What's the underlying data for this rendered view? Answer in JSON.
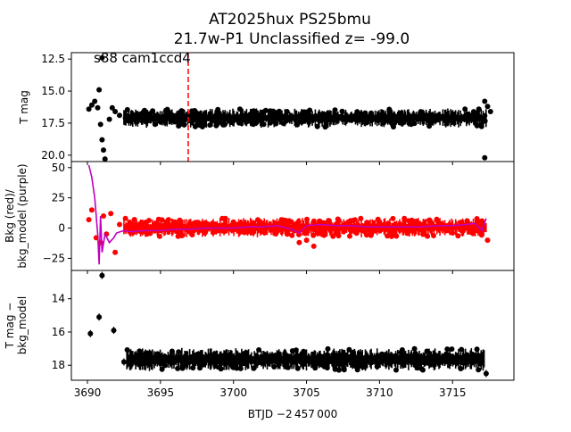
{
  "title_line1": "AT2025hux  PS25bmu",
  "title_line2": "21.7w-P1 Unclassified z= -99.0",
  "annotation": "s88 cam1ccd4",
  "xlabel": "BTJD −2 457 000",
  "colors": {
    "black": "#000000",
    "red": "#ff0000",
    "purple": "#bf00bf",
    "marker_line": "#ff0000"
  },
  "chart_data": [
    {
      "type": "scatter",
      "panel": "top",
      "ylabel": "T mag",
      "xlim": [
        3688.9,
        3719.2
      ],
      "ylim": [
        20.5,
        12.0
      ],
      "y_inverted": true,
      "yticks": [
        12.5,
        15.0,
        17.5,
        20.0
      ],
      "ytick_labels": [
        "12.5",
        "15.0",
        "17.5",
        "20.0"
      ],
      "vertical_marker_x": 3696.9,
      "series": [
        {
          "color": "#000000",
          "points": [
            [
              3690.1,
              16.4
            ],
            [
              3690.3,
              16.1
            ],
            [
              3690.5,
              15.8
            ],
            [
              3690.7,
              16.3
            ],
            [
              3690.8,
              14.9
            ],
            [
              3690.9,
              17.6
            ],
            [
              3691.0,
              18.8
            ],
            [
              3691.1,
              19.6
            ],
            [
              3691.2,
              20.3
            ],
            [
              3691.5,
              17.2
            ],
            [
              3691.7,
              16.3
            ],
            [
              3691.9,
              16.6
            ],
            [
              3692.2,
              16.9
            ],
            [
              3692.6,
              17.1
            ],
            [
              3693.0,
              17.3
            ],
            [
              3694.0,
              17.4
            ],
            [
              3695.0,
              17.4
            ],
            [
              3695.5,
              16.8
            ],
            [
              3696.0,
              17.4
            ],
            [
              3696.5,
              16.9
            ],
            [
              3697.0,
              17.3
            ],
            [
              3698.0,
              17.2
            ],
            [
              3699.0,
              17.1
            ],
            [
              3700.0,
              17.1
            ],
            [
              3701.0,
              17.0
            ],
            [
              3702.0,
              17.0
            ],
            [
              3703.0,
              17.0
            ],
            [
              3704.0,
              17.0
            ],
            [
              3705.0,
              16.9
            ],
            [
              3706.0,
              16.9
            ],
            [
              3707.0,
              16.9
            ],
            [
              3708.0,
              17.0
            ],
            [
              3709.0,
              17.0
            ],
            [
              3710.0,
              17.0
            ],
            [
              3711.0,
              17.0
            ],
            [
              3712.0,
              17.0
            ],
            [
              3713.0,
              16.9
            ],
            [
              3714.0,
              16.9
            ],
            [
              3715.0,
              16.8
            ],
            [
              3716.0,
              16.8
            ],
            [
              3716.8,
              16.4
            ],
            [
              3717.2,
              15.8
            ],
            [
              3717.4,
              16.2
            ],
            [
              3717.6,
              16.6
            ],
            [
              3717.2,
              20.2
            ],
            [
              3691.0,
              12.4
            ]
          ],
          "band": {
            "x": [
              3692.5,
              3717.3
            ],
            "y_low": 16.4,
            "y_high": 17.8
          }
        }
      ]
    },
    {
      "type": "scatter",
      "panel": "middle",
      "ylabel": "Bkg (red)/\nbkg_model (purple)",
      "xlim": [
        3688.9,
        3719.2
      ],
      "ylim": [
        -35,
        55
      ],
      "yticks": [
        50,
        25,
        0,
        -25
      ],
      "ytick_labels": [
        "50",
        "25",
        "0",
        "−25"
      ],
      "series": [
        {
          "name": "Bkg",
          "color": "#ff0000",
          "points": [
            [
              3690.1,
              7
            ],
            [
              3690.3,
              15
            ],
            [
              3690.6,
              -8
            ],
            [
              3690.9,
              -12
            ],
            [
              3691.1,
              10
            ],
            [
              3691.3,
              -5
            ],
            [
              3691.6,
              12
            ],
            [
              3691.9,
              -20
            ],
            [
              3692.2,
              3
            ],
            [
              3692.6,
              8
            ],
            [
              3693.0,
              -3
            ],
            [
              3694.0,
              4
            ],
            [
              3695.0,
              -2
            ],
            [
              3696.0,
              5
            ],
            [
              3697.0,
              -3
            ],
            [
              3698.0,
              4
            ],
            [
              3699.0,
              -2
            ],
            [
              3700.0,
              5
            ],
            [
              3701.0,
              -3
            ],
            [
              3702.0,
              4
            ],
            [
              3703.0,
              -2
            ],
            [
              3704.0,
              -6
            ],
            [
              3704.5,
              -12
            ],
            [
              3705.0,
              -10
            ],
            [
              3705.5,
              -15
            ],
            [
              3706.0,
              3
            ],
            [
              3707.0,
              -4
            ],
            [
              3708.0,
              6
            ],
            [
              3709.0,
              -3
            ],
            [
              3710.0,
              5
            ],
            [
              3711.0,
              -4
            ],
            [
              3712.0,
              6
            ],
            [
              3713.0,
              -3
            ],
            [
              3714.0,
              5
            ],
            [
              3715.0,
              -4
            ],
            [
              3716.0,
              6
            ],
            [
              3717.0,
              -5
            ],
            [
              3717.4,
              -10
            ]
          ],
          "band": {
            "x": [
              3692.5,
              3717.3
            ],
            "y_low": -7,
            "y_high": 8
          }
        },
        {
          "name": "bkg_model",
          "color": "#bf00bf",
          "line": [
            [
              3690.1,
              52
            ],
            [
              3690.3,
              42
            ],
            [
              3690.5,
              25
            ],
            [
              3690.7,
              -5
            ],
            [
              3690.8,
              -30
            ],
            [
              3690.9,
              10
            ],
            [
              3691.0,
              -20
            ],
            [
              3691.2,
              -5
            ],
            [
              3691.5,
              -12
            ],
            [
              3691.8,
              -8
            ],
            [
              3692.0,
              -4
            ],
            [
              3692.5,
              -2
            ],
            [
              3693.0,
              -3
            ],
            [
              3694.0,
              -2
            ],
            [
              3695.0,
              -2
            ],
            [
              3696.0,
              -1
            ],
            [
              3697.0,
              -1
            ],
            [
              3698.0,
              0
            ],
            [
              3699.0,
              0
            ],
            [
              3700.0,
              0
            ],
            [
              3701.0,
              1
            ],
            [
              3702.0,
              1
            ],
            [
              3703.0,
              2
            ],
            [
              3704.0,
              -1
            ],
            [
              3704.5,
              -4
            ],
            [
              3705.0,
              2
            ],
            [
              3706.0,
              3
            ],
            [
              3707.0,
              2
            ],
            [
              3708.0,
              2
            ],
            [
              3709.0,
              1
            ],
            [
              3710.0,
              1
            ],
            [
              3711.0,
              1
            ],
            [
              3712.0,
              1
            ],
            [
              3713.0,
              1
            ],
            [
              3714.0,
              2
            ],
            [
              3715.0,
              2
            ],
            [
              3716.0,
              3
            ],
            [
              3716.5,
              4
            ],
            [
              3717.0,
              -2
            ],
            [
              3717.3,
              8
            ]
          ]
        }
      ]
    },
    {
      "type": "scatter",
      "panel": "bottom",
      "ylabel": "T mag −\nbkg_model",
      "xlim": [
        3688.9,
        3719.2
      ],
      "ylim": [
        18.9,
        12.3
      ],
      "y_inverted": true,
      "yticks": [
        14,
        16,
        18
      ],
      "ytick_labels": [
        "14",
        "16",
        "18"
      ],
      "xticks": [
        3690,
        3695,
        3700,
        3705,
        3710,
        3715
      ],
      "xtick_labels": [
        "3690",
        "3695",
        "3700",
        "3705",
        "3710",
        "3715"
      ],
      "series": [
        {
          "color": "#000000",
          "points": [
            [
              3690.2,
              16.1
            ],
            [
              3690.8,
              15.1
            ],
            [
              3691.0,
              12.6
            ],
            [
              3691.8,
              15.9
            ],
            [
              3692.5,
              17.8
            ],
            [
              3693.0,
              17.9
            ],
            [
              3694.0,
              17.8
            ],
            [
              3695.0,
              17.9
            ],
            [
              3696.0,
              17.7
            ],
            [
              3697.0,
              17.8
            ],
            [
              3698.0,
              17.8
            ],
            [
              3699.0,
              17.7
            ],
            [
              3700.0,
              17.8
            ],
            [
              3701.0,
              17.7
            ],
            [
              3702.0,
              17.8
            ],
            [
              3703.0,
              17.7
            ],
            [
              3704.0,
              17.8
            ],
            [
              3705.0,
              17.6
            ],
            [
              3706.0,
              17.5
            ],
            [
              3707.0,
              17.6
            ],
            [
              3708.0,
              17.5
            ],
            [
              3709.0,
              17.6
            ],
            [
              3710.0,
              17.5
            ],
            [
              3711.0,
              17.6
            ],
            [
              3712.0,
              17.5
            ],
            [
              3713.0,
              17.5
            ],
            [
              3714.0,
              17.5
            ],
            [
              3715.0,
              17.5
            ],
            [
              3716.0,
              17.5
            ],
            [
              3717.0,
              17.4
            ],
            [
              3717.3,
              18.5
            ]
          ],
          "band": {
            "x": [
              3692.7,
              3717.2
            ],
            "y_low": 17.0,
            "y_high": 18.3
          }
        }
      ]
    }
  ]
}
